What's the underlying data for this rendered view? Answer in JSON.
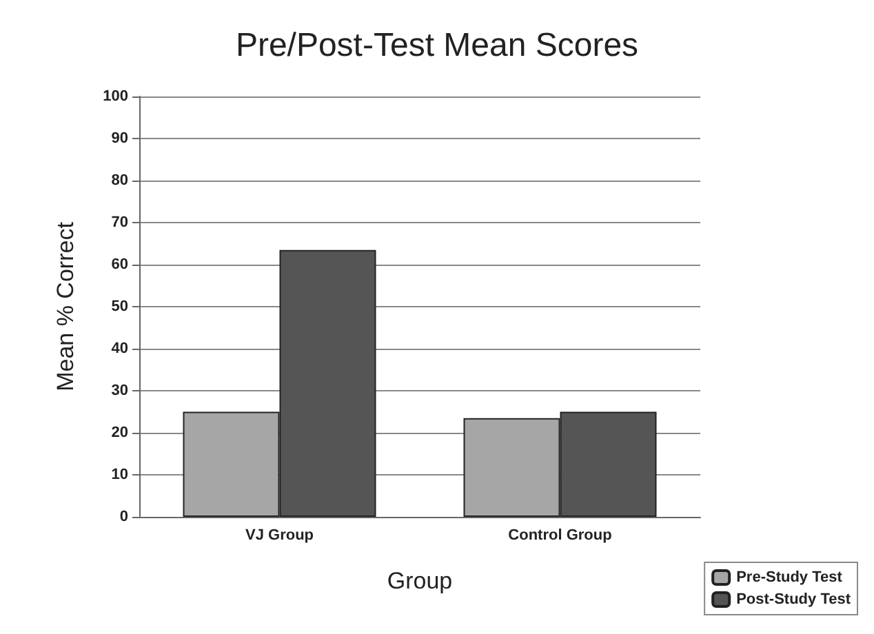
{
  "chart_data": {
    "type": "bar",
    "title": "Pre/Post-Test Mean Scores",
    "xlabel": "Group",
    "ylabel": "Mean % Correct",
    "categories": [
      "VJ Group",
      "Control Group"
    ],
    "series": [
      {
        "name": "Pre-Study Test",
        "color": "#a6a6a6",
        "values": [
          25,
          23.5
        ]
      },
      {
        "name": "Post-Study Test",
        "color": "#555555",
        "values": [
          63.5,
          25
        ]
      }
    ],
    "ylim": [
      0,
      100
    ],
    "yticks": [
      0,
      10,
      20,
      30,
      40,
      50,
      60,
      70,
      80,
      90,
      100
    ],
    "grid": "y",
    "legend": "bottom right"
  }
}
